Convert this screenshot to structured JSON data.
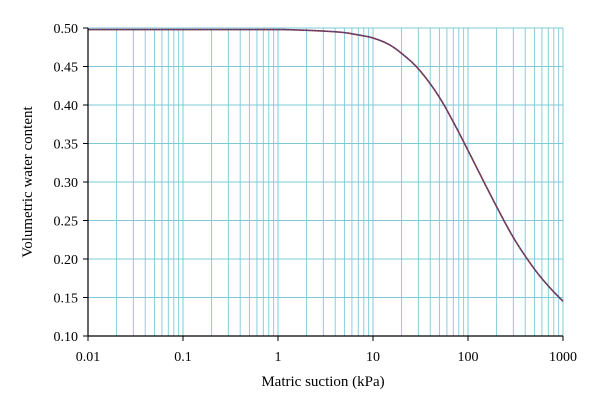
{
  "chart_data": {
    "type": "line",
    "title": "",
    "xlabel": "Matric suction (kPa)",
    "ylabel": "Volumetric water content",
    "xscale": "log",
    "xlim": [
      0.01,
      1000
    ],
    "ylim": [
      0.1,
      0.5
    ],
    "grid": true,
    "legend": "none",
    "x_ticks": [
      0.01,
      0.1,
      1,
      10,
      100,
      1000
    ],
    "x_tick_labels": [
      "0.01",
      "0.1",
      "1",
      "10",
      "100",
      "1000"
    ],
    "y_ticks": [
      0.1,
      0.15,
      0.2,
      0.25,
      0.3,
      0.35,
      0.4,
      0.45,
      0.5
    ],
    "y_tick_labels": [
      "0.10",
      "0.15",
      "0.20",
      "0.25",
      "0.30",
      "0.35",
      "0.40",
      "0.45",
      "0.50"
    ],
    "colors": {
      "grid": "#7ec8d8",
      "series_line": "#7a2c3a",
      "series_overlay": "#4a5fc0",
      "axis": "#000000"
    },
    "series": [
      {
        "x": [
          0.01,
          0.1,
          1,
          2,
          3,
          5,
          7,
          10,
          15,
          20,
          30,
          50,
          70,
          100,
          150,
          200,
          300,
          500,
          700,
          1000
        ],
        "y": [
          0.498,
          0.498,
          0.498,
          0.497,
          0.496,
          0.494,
          0.491,
          0.487,
          0.478,
          0.467,
          0.447,
          0.41,
          0.378,
          0.341,
          0.298,
          0.268,
          0.228,
          0.187,
          0.165,
          0.145
        ]
      }
    ]
  }
}
